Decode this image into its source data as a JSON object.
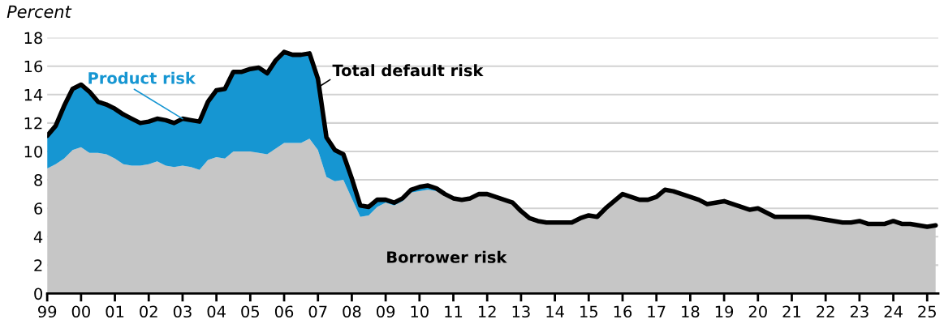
{
  "chart_data": {
    "type": "area",
    "stacked": true,
    "annotations": [
      {
        "text": "Total default risk",
        "x": 2007,
        "y": 14.5
      }
    ],
    "ylabel": "Percent",
    "grid": "y",
    "legend": false,
    "xlim": [
      1999,
      2025.33
    ],
    "ylim": [
      0,
      18
    ],
    "yticks": [
      0,
      2,
      4,
      6,
      8,
      10,
      12,
      14,
      16,
      18
    ],
    "xticks": [
      {
        "value": 1999,
        "label": "99"
      },
      {
        "value": 2000,
        "label": "00"
      },
      {
        "value": 2001,
        "label": "01"
      },
      {
        "value": 2002,
        "label": "02"
      },
      {
        "value": 2003,
        "label": "03"
      },
      {
        "value": 2004,
        "label": "04"
      },
      {
        "value": 2005,
        "label": "05"
      },
      {
        "value": 2006,
        "label": "06"
      },
      {
        "value": 2007,
        "label": "07"
      },
      {
        "value": 2008,
        "label": "08"
      },
      {
        "value": 2009,
        "label": "09"
      },
      {
        "value": 2010,
        "label": "10"
      },
      {
        "value": 2011,
        "label": "11"
      },
      {
        "value": 2012,
        "label": "12"
      },
      {
        "value": 2013,
        "label": "13"
      },
      {
        "value": 2014,
        "label": "14"
      },
      {
        "value": 2015,
        "label": "15"
      },
      {
        "value": 2016,
        "label": "16"
      },
      {
        "value": 2017,
        "label": "17"
      },
      {
        "value": 2018,
        "label": "18"
      },
      {
        "value": 2019,
        "label": "19"
      },
      {
        "value": 2020,
        "label": "20"
      },
      {
        "value": 2021,
        "label": "21"
      },
      {
        "value": 2022,
        "label": "22"
      },
      {
        "value": 2023,
        "label": "23"
      },
      {
        "value": 2024,
        "label": "24"
      },
      {
        "value": 2025,
        "label": "25"
      }
    ],
    "x": [
      1999,
      1999.25,
      1999.5,
      1999.75,
      2000,
      2000.25,
      2000.5,
      2000.75,
      2001,
      2001.25,
      2001.5,
      2001.75,
      2002,
      2002.25,
      2002.5,
      2002.75,
      2003,
      2003.25,
      2003.5,
      2003.75,
      2004,
      2004.25,
      2004.5,
      2004.75,
      2005,
      2005.25,
      2005.5,
      2005.75,
      2006,
      2006.25,
      2006.5,
      2006.75,
      2007,
      2007.25,
      2007.5,
      2007.75,
      2008,
      2008.25,
      2008.5,
      2008.75,
      2009,
      2009.25,
      2009.5,
      2009.75,
      2010,
      2010.25,
      2010.5,
      2010.75,
      2011,
      2011.25,
      2011.5,
      2011.75,
      2012,
      2012.25,
      2012.5,
      2012.75,
      2013,
      2013.25,
      2013.5,
      2013.75,
      2014,
      2014.25,
      2014.5,
      2014.75,
      2015,
      2015.25,
      2015.5,
      2015.75,
      2016,
      2016.25,
      2016.5,
      2016.75,
      2017,
      2017.25,
      2017.5,
      2017.75,
      2018,
      2018.25,
      2018.5,
      2018.75,
      2019,
      2019.25,
      2019.5,
      2019.75,
      2020,
      2020.25,
      2020.5,
      2020.75,
      2021,
      2021.25,
      2021.5,
      2021.75,
      2022,
      2022.25,
      2022.5,
      2022.75,
      2023,
      2023.25,
      2023.5,
      2023.75,
      2024,
      2024.25,
      2024.5,
      2024.75,
      2025,
      2025.25
    ],
    "series": [
      {
        "name": "Borrower risk",
        "color": "#c6c6c6",
        "values": [
          8.8,
          9.1,
          9.5,
          10.1,
          10.3,
          9.9,
          9.9,
          9.8,
          9.5,
          9.1,
          9.0,
          9.0,
          9.1,
          9.3,
          9.0,
          8.9,
          9.0,
          8.9,
          8.7,
          9.4,
          9.6,
          9.5,
          10.0,
          10.0,
          10.0,
          9.9,
          9.8,
          10.2,
          10.6,
          10.6,
          10.6,
          10.9,
          10.1,
          8.2,
          7.9,
          8.0,
          6.7,
          5.4,
          5.5,
          6.1,
          6.4,
          6.2,
          6.5,
          7.1,
          7.2,
          7.3,
          7.2,
          7.0,
          6.7,
          6.6,
          6.7,
          7.0,
          7.0,
          6.8,
          6.6,
          6.4,
          5.8,
          5.3,
          5.1,
          5.0,
          5.0,
          5.0,
          5.0,
          5.3,
          5.5,
          5.4,
          6.0,
          6.5,
          7.0,
          6.8,
          6.6,
          6.6,
          6.8,
          7.3,
          7.2,
          7.0,
          6.8,
          6.6,
          6.3,
          6.4,
          6.5,
          6.3,
          6.1,
          5.9,
          6.0,
          5.7,
          5.4,
          5.4,
          5.4,
          5.4,
          5.4,
          5.3,
          5.2,
          5.1,
          5.0,
          5.0,
          5.1,
          4.9,
          4.9,
          4.9,
          5.1,
          4.9,
          4.9,
          4.8,
          4.7,
          4.8
        ]
      },
      {
        "name": "Product risk",
        "color": "#1696d2",
        "values": [
          2.3,
          2.7,
          3.7,
          4.3,
          4.4,
          4.3,
          3.6,
          3.5,
          3.5,
          3.5,
          3.3,
          3.0,
          3.0,
          3.0,
          3.2,
          3.1,
          3.3,
          3.3,
          3.4,
          4.1,
          4.7,
          4.9,
          5.6,
          5.6,
          5.8,
          6.0,
          5.7,
          6.2,
          6.4,
          6.2,
          6.2,
          6.0,
          5.0,
          2.8,
          2.2,
          1.8,
          1.4,
          0.8,
          0.6,
          0.5,
          0.2,
          0.2,
          0.2,
          0.2,
          0.3,
          0.3,
          0.2,
          0,
          0,
          0,
          0,
          0,
          0,
          0,
          0,
          0,
          0,
          0,
          0,
          0,
          0,
          0,
          0,
          0,
          0,
          0,
          0,
          0,
          0,
          0,
          0,
          0,
          0,
          0,
          0,
          0,
          0,
          0,
          0,
          0,
          0,
          0,
          0,
          0,
          0,
          0,
          0,
          0,
          0,
          0,
          0,
          0,
          0,
          0,
          0,
          0,
          0,
          0,
          0,
          0,
          0,
          0,
          0,
          0,
          0,
          0
        ]
      }
    ]
  }
}
